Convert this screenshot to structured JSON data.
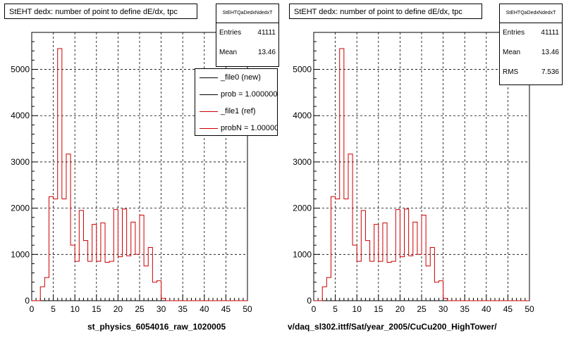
{
  "pads": [
    {
      "title": "StEHT dedx: number of point to define dE/dx, tpc",
      "stats": {
        "name": "StEHTQaDedxNdedxT",
        "rows": [
          {
            "label": "Entries",
            "value": "41111"
          },
          {
            "label": "Mean",
            "value": "13.46"
          },
          {
            "label": "RMS",
            "value": "7.536"
          }
        ]
      },
      "legend": [
        {
          "label": "_file0 (new)",
          "color": "#000000"
        },
        {
          "label": "prob = 1.000000",
          "color": "#000000"
        },
        {
          "label": "_file1 (ref)",
          "color": "#cc0000"
        },
        {
          "label": "probN = 1.000000",
          "color": "#cc0000"
        }
      ],
      "xtitle": "st_physics_6054016_raw_1020005"
    },
    {
      "title": "StEHT dedx: number of point to define dE/dx, tpc",
      "stats": {
        "name": "StEHTQaDedxNdedxT",
        "rows": [
          {
            "label": "Entries",
            "value": "41111"
          },
          {
            "label": "Mean",
            "value": "13.46"
          },
          {
            "label": "RMS",
            "value": "7.536"
          }
        ]
      },
      "xtitle": "v/daq_sl302.ittf/Sat/year_2005/CuCu200_HighTower/"
    }
  ],
  "chart_data": [
    {
      "type": "bar",
      "style": "step-histogram",
      "title": "StEHT dedx: number of point to define dE/dx, tpc",
      "xlabel": "st_physics_6054016_raw_1020005",
      "ylabel": "",
      "xlim": [
        0,
        50
      ],
      "ylim": [
        0,
        5800
      ],
      "xticks": [
        0,
        5,
        10,
        15,
        20,
        25,
        30,
        35,
        40,
        45,
        50
      ],
      "yticks": [
        0,
        1000,
        2000,
        3000,
        4000,
        5000
      ],
      "grid": true,
      "bin_width": 1,
      "x": [
        0,
        1,
        2,
        3,
        4,
        5,
        6,
        7,
        8,
        9,
        10,
        11,
        12,
        13,
        14,
        15,
        16,
        17,
        18,
        19,
        20,
        21,
        22,
        23,
        24,
        25,
        26,
        27,
        28,
        29,
        30,
        31,
        32,
        33,
        34,
        35,
        36,
        37,
        38,
        39,
        40,
        41,
        42,
        43,
        44,
        45,
        46,
        47,
        48,
        49
      ],
      "series": [
        {
          "name": "_file1 (ref)",
          "color": "#cc0000",
          "values": [
            0,
            0,
            300,
            500,
            2250,
            2200,
            5450,
            2200,
            3170,
            1200,
            850,
            1950,
            1300,
            850,
            1650,
            850,
            1680,
            830,
            850,
            1970,
            950,
            1980,
            970,
            1700,
            1000,
            1850,
            750,
            1150,
            400,
            430,
            50,
            0,
            0,
            0,
            0,
            0,
            0,
            0,
            0,
            0,
            0,
            0,
            0,
            0,
            0,
            0,
            0,
            0,
            0,
            0
          ]
        }
      ]
    },
    {
      "type": "bar",
      "style": "step-histogram",
      "title": "StEHT dedx: number of point to define dE/dx, tpc",
      "xlabel": "v/daq_sl302.ittf/Sat/year_2005/CuCu200_HighTower/",
      "ylabel": "",
      "xlim": [
        0,
        50
      ],
      "ylim": [
        0,
        5800
      ],
      "xticks": [
        0,
        5,
        10,
        15,
        20,
        25,
        30,
        35,
        40,
        45,
        50
      ],
      "yticks": [
        0,
        1000,
        2000,
        3000,
        4000,
        5000
      ],
      "grid": true,
      "bin_width": 1,
      "x": [
        0,
        1,
        2,
        3,
        4,
        5,
        6,
        7,
        8,
        9,
        10,
        11,
        12,
        13,
        14,
        15,
        16,
        17,
        18,
        19,
        20,
        21,
        22,
        23,
        24,
        25,
        26,
        27,
        28,
        29,
        30,
        31,
        32,
        33,
        34,
        35,
        36,
        37,
        38,
        39,
        40,
        41,
        42,
        43,
        44,
        45,
        46,
        47,
        48,
        49
      ],
      "series": [
        {
          "color": "#cc0000",
          "values": [
            0,
            0,
            300,
            500,
            2250,
            2200,
            5450,
            2200,
            3170,
            1200,
            850,
            1950,
            1300,
            850,
            1650,
            850,
            1680,
            830,
            850,
            1970,
            950,
            1980,
            970,
            1700,
            1000,
            1850,
            750,
            1150,
            400,
            430,
            50,
            0,
            0,
            0,
            0,
            0,
            0,
            0,
            0,
            0,
            0,
            0,
            0,
            0,
            0,
            0,
            0,
            0,
            0,
            0
          ]
        }
      ]
    }
  ]
}
